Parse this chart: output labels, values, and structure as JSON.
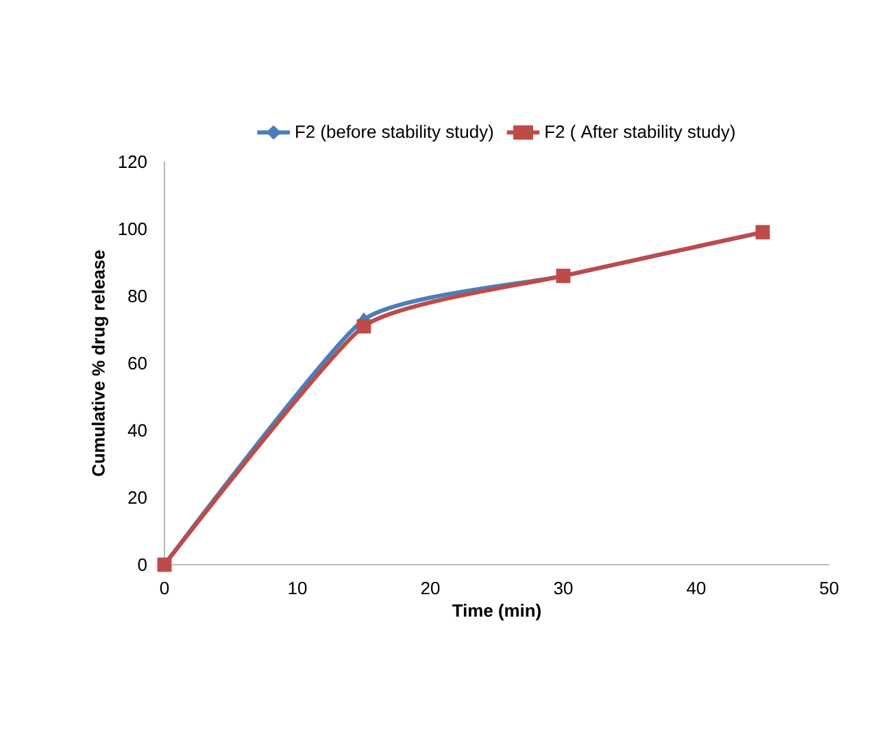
{
  "chart_data": {
    "type": "line",
    "xlabel": "Time (min)",
    "ylabel": "Cumulative % drug release",
    "x": [
      0,
      15,
      30,
      45
    ],
    "series": [
      {
        "name": "F2 (before stability study)",
        "color": "#4a7ebb",
        "marker": "diamond",
        "values": [
          0,
          73,
          86,
          99
        ]
      },
      {
        "name": "F2 ( After stability study)",
        "color": "#be4b48",
        "marker": "square",
        "values": [
          0,
          71,
          86,
          99
        ]
      }
    ],
    "xlim": [
      0,
      50
    ],
    "ylim": [
      0,
      120
    ],
    "xticks": [
      0,
      10,
      20,
      30,
      40,
      50
    ],
    "yticks": [
      0,
      20,
      40,
      60,
      80,
      100,
      120
    ],
    "legend": "top",
    "grid": false,
    "line_style": "solid"
  }
}
